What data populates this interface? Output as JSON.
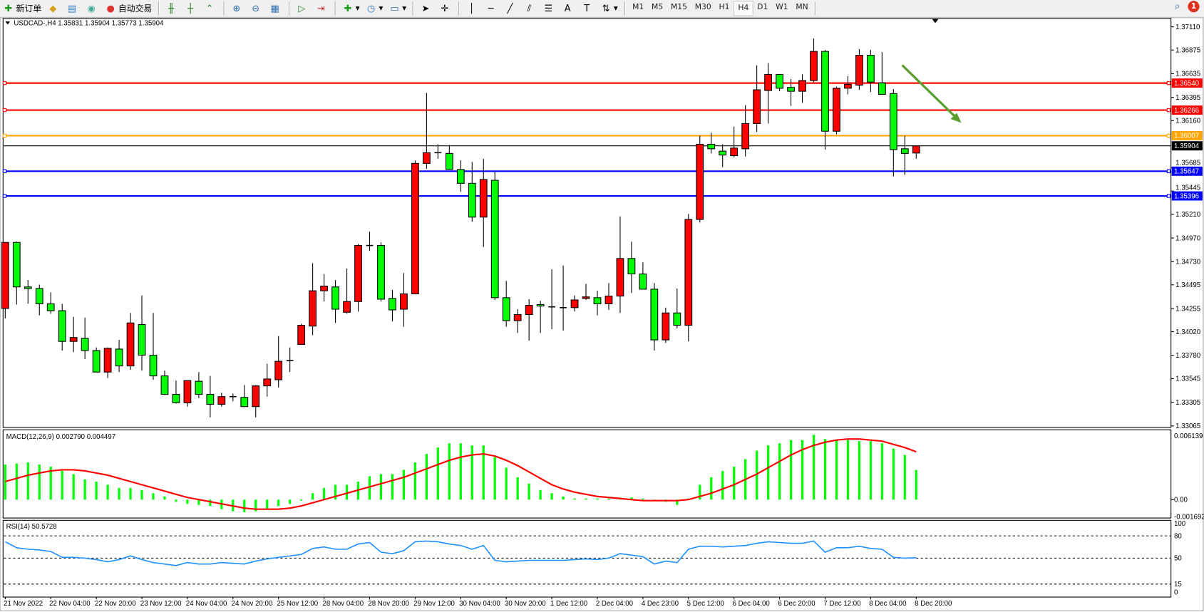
{
  "toolbar": {
    "new_order": "新订单",
    "auto_trade": "自动交易",
    "timeframes": [
      "M1",
      "M5",
      "M15",
      "M30",
      "H1",
      "H4",
      "D1",
      "W1",
      "MN"
    ],
    "active_timeframe": "H4",
    "notification_count": "1"
  },
  "chart_data": {
    "type": "candlestick",
    "title": "USDCAD-,H4  1.35831 1.35904 1.35773 1.35904",
    "symbol": "USDCAD-",
    "timeframe": "H4",
    "bullish_color": "#ff0000",
    "bearish_color": "#00ff00",
    "ylim": [
      1.33065,
      1.3711
    ],
    "price_ticks": [
      "1.37110",
      "1.36875",
      "1.36635",
      "1.36395",
      "1.36160",
      "1.35685",
      "1.35445",
      "1.35210",
      "1.34970",
      "1.34730",
      "1.34495",
      "1.34255",
      "1.34020",
      "1.33780",
      "1.33545",
      "1.33305",
      "1.33065"
    ],
    "current_price": {
      "value": 1.35904,
      "label": "1.35904",
      "color": "#000000"
    },
    "levels": [
      {
        "value": 1.3654,
        "label": "1.36540",
        "color": "#ff0000"
      },
      {
        "value": 1.36266,
        "label": "1.36266",
        "color": "#ff0000"
      },
      {
        "value": 1.36007,
        "label": "1.36007",
        "color": "#ffa500"
      },
      {
        "value": 1.35647,
        "label": "1.35647",
        "color": "#0000ff"
      },
      {
        "value": 1.35396,
        "label": "1.35396",
        "color": "#0000ff"
      }
    ],
    "arrow": {
      "direction": "down-right",
      "color": "#5a9e2f"
    },
    "x_labels": [
      "21 Nov 2022",
      "22 Nov 04:00",
      "22 Nov 20:00",
      "23 Nov 12:00",
      "24 Nov 04:00",
      "24 Nov 20:00",
      "25 Nov 12:00",
      "28 Nov 04:00",
      "28 Nov 20:00",
      "29 Nov 12:00",
      "30 Nov 04:00",
      "30 Nov 20:00",
      "1 Dec 12:00",
      "2 Dec 04:00",
      "4 Dec 23:00",
      "5 Dec 12:00",
      "6 Dec 04:00",
      "6 Dec 20:00",
      "7 Dec 12:00",
      "8 Dec 04:00",
      "8 Dec 20:00"
    ],
    "ohlc": [
      [
        1.34256,
        1.34925,
        1.34155,
        1.34925
      ],
      [
        1.34925,
        1.34933,
        1.34295,
        1.34474
      ],
      [
        1.34474,
        1.34544,
        1.34303,
        1.34458
      ],
      [
        1.34458,
        1.34497,
        1.34186,
        1.34303
      ],
      [
        1.34303,
        1.3442,
        1.34202,
        1.34233
      ],
      [
        1.34233,
        1.34303,
        1.33829,
        1.33922
      ],
      [
        1.33922,
        1.34171,
        1.33813,
        1.33961
      ],
      [
        1.33953,
        1.34163,
        1.33743,
        1.33829
      ],
      [
        1.33829,
        1.3386,
        1.33611,
        1.33611
      ],
      [
        1.33611,
        1.3386,
        1.33549,
        1.33852
      ],
      [
        1.33844,
        1.33937,
        1.33611,
        1.33673
      ],
      [
        1.33673,
        1.3421,
        1.33634,
        1.34109
      ],
      [
        1.34093,
        1.34388,
        1.33626,
        1.33782
      ],
      [
        1.33782,
        1.3421,
        1.33533,
        1.33572
      ],
      [
        1.33572,
        1.33626,
        1.33378,
        1.33385
      ],
      [
        1.33385,
        1.33525,
        1.33292,
        1.333
      ],
      [
        1.333,
        1.33525,
        1.33261,
        1.33525
      ],
      [
        1.33518,
        1.33611,
        1.33346,
        1.33385
      ],
      [
        1.33385,
        1.33572,
        1.33152,
        1.33284
      ],
      [
        1.33284,
        1.33401,
        1.33261,
        1.33362
      ],
      [
        1.33362,
        1.33393,
        1.33315,
        1.33362
      ],
      [
        1.33354,
        1.33479,
        1.33261,
        1.33261
      ],
      [
        1.33261,
        1.33479,
        1.33152,
        1.33471
      ],
      [
        1.33471,
        1.33696,
        1.33362,
        1.33541
      ],
      [
        1.33533,
        1.33976,
        1.33455,
        1.3372
      ],
      [
        1.33727,
        1.3386,
        1.33611,
        1.33727
      ],
      [
        1.33891,
        1.34101,
        1.33891,
        1.34085
      ],
      [
        1.34077,
        1.34715,
        1.33984,
        1.34435
      ],
      [
        1.34435,
        1.34606,
        1.34326,
        1.34482
      ],
      [
        1.34474,
        1.34544,
        1.34109,
        1.34248
      ],
      [
        1.34217,
        1.34661,
        1.34202,
        1.34326
      ],
      [
        1.34326,
        1.34909,
        1.34225,
        1.34894
      ],
      [
        1.34894,
        1.35034,
        1.34839,
        1.34894
      ],
      [
        1.34894,
        1.34925,
        1.34326,
        1.3435
      ],
      [
        1.34357,
        1.34443,
        1.34124,
        1.34241
      ],
      [
        1.34248,
        1.34614,
        1.3407,
        1.34404
      ],
      [
        1.34404,
        1.35757,
        1.34404,
        1.35726
      ],
      [
        1.35726,
        1.36441,
        1.35671,
        1.35835
      ],
      [
        1.35835,
        1.3592,
        1.35773,
        1.35835
      ],
      [
        1.35827,
        1.35913,
        1.35664,
        1.35664
      ],
      [
        1.35664,
        1.35757,
        1.35438,
        1.35524
      ],
      [
        1.35524,
        1.35741,
        1.35135,
        1.35182
      ],
      [
        1.35182,
        1.35773,
        1.34878,
        1.35563
      ],
      [
        1.35555,
        1.3564,
        1.34342,
        1.34365
      ],
      [
        1.34365,
        1.34536,
        1.3407,
        1.34132
      ],
      [
        1.34132,
        1.34248,
        1.34007,
        1.34194
      ],
      [
        1.34194,
        1.3435,
        1.3393,
        1.34287
      ],
      [
        1.34295,
        1.34334,
        1.34007,
        1.3428
      ],
      [
        1.34272,
        1.34653,
        1.34046,
        1.34272
      ],
      [
        1.34264,
        1.34692,
        1.34031,
        1.34264
      ],
      [
        1.34264,
        1.34388,
        1.34225,
        1.34342
      ],
      [
        1.34357,
        1.34505,
        1.34342,
        1.34373
      ],
      [
        1.34365,
        1.34435,
        1.34186,
        1.34303
      ],
      [
        1.34303,
        1.34513,
        1.34241,
        1.34381
      ],
      [
        1.34381,
        1.35189,
        1.3421,
        1.34762
      ],
      [
        1.34762,
        1.34933,
        1.34412,
        1.34606
      ],
      [
        1.34606,
        1.34723,
        1.34451,
        1.34451
      ],
      [
        1.34451,
        1.34513,
        1.33829,
        1.33937
      ],
      [
        1.33937,
        1.34264,
        1.33906,
        1.3421
      ],
      [
        1.3421,
        1.34458,
        1.34054,
        1.34085
      ],
      [
        1.34085,
        1.35213,
        1.33922,
        1.35158
      ],
      [
        1.35158,
        1.36006,
        1.35127,
        1.3592
      ],
      [
        1.3592,
        1.36037,
        1.35827,
        1.35874
      ],
      [
        1.3585,
        1.3592,
        1.35687,
        1.35811
      ],
      [
        1.35804,
        1.36099,
        1.35788,
        1.35881
      ],
      [
        1.35874,
        1.36317,
        1.35796,
        1.3613
      ],
      [
        1.3613,
        1.36721,
        1.36045,
        1.36472
      ],
      [
        1.36465,
        1.36745,
        1.3613,
        1.36628
      ],
      [
        1.36628,
        1.36628,
        1.36457,
        1.36488
      ],
      [
        1.36496,
        1.36581,
        1.36309,
        1.36457
      ],
      [
        1.36457,
        1.36628,
        1.3634,
        1.36566
      ],
      [
        1.36566,
        1.36993,
        1.3655,
        1.36861
      ],
      [
        1.36861,
        1.36877,
        1.35866,
        1.36052
      ],
      [
        1.36052,
        1.36504,
        1.36021,
        1.36488
      ],
      [
        1.36488,
        1.36612,
        1.36426,
        1.36527
      ],
      [
        1.36519,
        1.36885,
        1.36472,
        1.36822
      ],
      [
        1.36822,
        1.36877,
        1.36449,
        1.3655
      ],
      [
        1.36542,
        1.36853,
        1.36426,
        1.36426
      ],
      [
        1.36434,
        1.3648,
        1.35594,
        1.35866
      ],
      [
        1.35874,
        1.36006,
        1.35609,
        1.35827
      ],
      [
        1.35831,
        1.35904,
        1.35773,
        1.35904
      ]
    ],
    "macd": {
      "label": "MACD(12,26,9) 0.002790 0.004497",
      "ylim": [
        -0.001692,
        0.006139
      ],
      "ticks": [
        "0.006139",
        "0.00",
        "-0.001692"
      ],
      "histogram_color": "#00ff00",
      "signal_color": "#ff0000",
      "histogram": [
        0.0033,
        0.0034,
        0.0035,
        0.0033,
        0.0031,
        0.0027,
        0.0024,
        0.0019,
        0.0017,
        0.0014,
        0.0011,
        0.0011,
        0.0009,
        0.0006,
        0.0003,
        -0.0002,
        -0.0004,
        -0.0005,
        -0.0006,
        -0.0009,
        -0.0011,
        -0.0012,
        -0.0011,
        -0.0009,
        -0.0006,
        -0.0004,
        -0.0001,
        0.0006,
        0.0011,
        0.0014,
        0.0014,
        0.0017,
        0.0022,
        0.0024,
        0.0024,
        0.0028,
        0.0035,
        0.0043,
        0.0049,
        0.0053,
        0.0053,
        0.0051,
        0.0051,
        0.004,
        0.003,
        0.0021,
        0.0015,
        0.0009,
        0.0006,
        0.0003,
        0.0001,
        0.0001,
        0.0001,
        0.0001,
        0.0002,
        0.0002,
        0.0001,
        -0.0001,
        -0.0002,
        -0.0005,
        0.0001,
        0.0014,
        0.0021,
        0.0027,
        0.0031,
        0.0038,
        0.0046,
        0.0051,
        0.0053,
        0.0056,
        0.0056,
        0.0061,
        0.0057,
        0.0056,
        0.0056,
        0.0055,
        0.0055,
        0.0053,
        0.0048,
        0.0042,
        0.00279
      ],
      "signal": [
        0.0017,
        0.002,
        0.0023,
        0.0025,
        0.0027,
        0.0028,
        0.0028,
        0.0027,
        0.0025,
        0.0023,
        0.002,
        0.0017,
        0.0014,
        0.0011,
        0.0008,
        0.0005,
        0.0002,
        0.0,
        -0.0002,
        -0.0004,
        -0.0006,
        -0.0008,
        -0.0009,
        -0.0009,
        -0.0009,
        -0.0008,
        -0.0006,
        -0.0003,
        0.0,
        0.0003,
        0.0006,
        0.0009,
        0.0012,
        0.0015,
        0.0018,
        0.0021,
        0.0025,
        0.0029,
        0.0033,
        0.0037,
        0.004,
        0.0042,
        0.0043,
        0.0041,
        0.0037,
        0.0032,
        0.0026,
        0.002,
        0.0014,
        0.001,
        0.0007,
        0.0005,
        0.0003,
        0.0002,
        0.0001,
        0.0,
        -0.0001,
        -0.0001,
        -0.0001,
        -0.0001,
        0.0,
        0.0003,
        0.0006,
        0.001,
        0.0014,
        0.0019,
        0.0024,
        0.003,
        0.0036,
        0.0042,
        0.0047,
        0.0051,
        0.0054,
        0.0056,
        0.0057,
        0.0057,
        0.0056,
        0.0055,
        0.0052,
        0.0049,
        0.004497
      ]
    },
    "rsi": {
      "label": "RSI(14) 50.5728",
      "ylim": [
        0,
        100
      ],
      "ticks": [
        "100",
        "80",
        "50",
        "15",
        "0"
      ],
      "levels": [
        80,
        50,
        15
      ],
      "color": "#1e90ff",
      "values": [
        72,
        64,
        62,
        61,
        59,
        51,
        51,
        50,
        48,
        45,
        48,
        53,
        48,
        44,
        42,
        40,
        44,
        42,
        42,
        44,
        43,
        42,
        46,
        49,
        51,
        53,
        55,
        63,
        65,
        62,
        62,
        69,
        71,
        58,
        56,
        60,
        72,
        73,
        72,
        69,
        67,
        62,
        67,
        47,
        45,
        46,
        47,
        47,
        47,
        47,
        48,
        49,
        48,
        50,
        56,
        54,
        52,
        42,
        46,
        44,
        62,
        66,
        66,
        65,
        66,
        67,
        70,
        72,
        71,
        70,
        70,
        73,
        58,
        64,
        64,
        66,
        63,
        62,
        51,
        50,
        50.5728
      ]
    }
  }
}
